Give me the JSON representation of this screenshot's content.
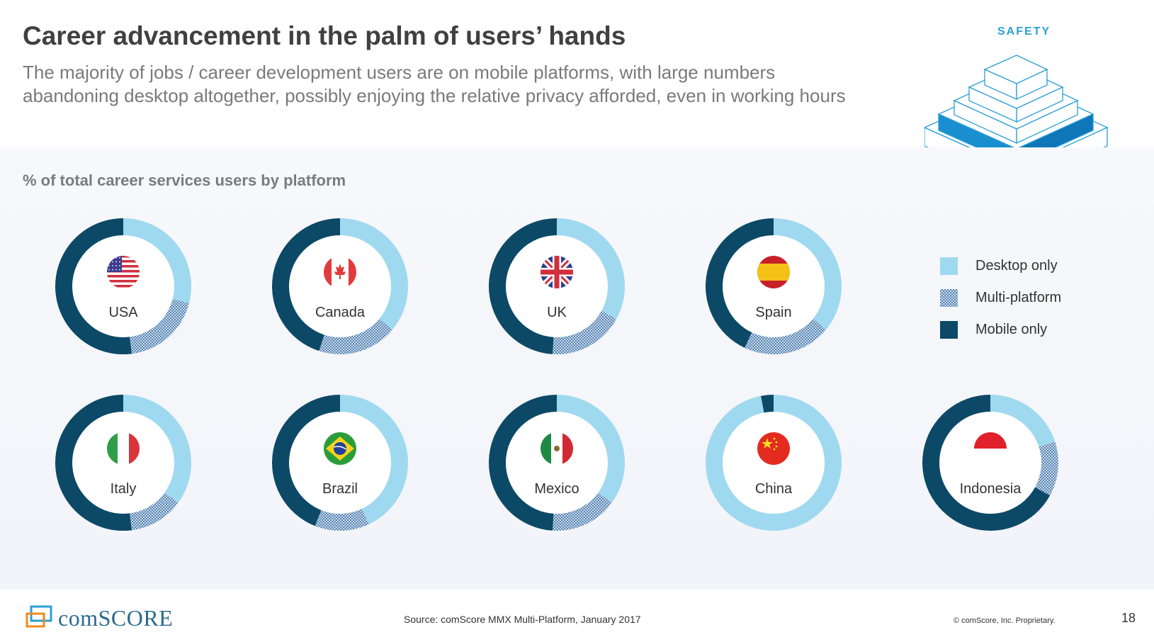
{
  "header": {
    "title": "Career advancement in the palm of users’ hands",
    "subtitle_line1": "The majority of jobs / career development users are on mobile platforms, with large numbers",
    "subtitle_line2": "abandoning desktop altogether, possibly enjoying the relative privacy afforded, even in working hours",
    "badge": "SAFETY"
  },
  "colors": {
    "desktop": "#9fd9f0",
    "multi": "#5b86b3",
    "mobile": "#0c4966"
  },
  "chart_data": {
    "type": "pie",
    "title": "% of total career services users by platform",
    "series_names": [
      "Desktop only",
      "Multi-platform",
      "Mobile only"
    ],
    "countries": [
      {
        "name": "USA",
        "flag": "usa",
        "desktop": 29,
        "multi": 19,
        "mobile": 52
      },
      {
        "name": "Canada",
        "flag": "canada",
        "desktop": 36,
        "multi": 19,
        "mobile": 45
      },
      {
        "name": "UK",
        "flag": "uk",
        "desktop": 33,
        "multi": 18,
        "mobile": 49
      },
      {
        "name": "Spain",
        "flag": "spain",
        "desktop": 36,
        "multi": 21,
        "mobile": 43
      },
      {
        "name": "Italy",
        "flag": "italy",
        "desktop": 35,
        "multi": 13,
        "mobile": 52
      },
      {
        "name": "Brazil",
        "flag": "brazil",
        "desktop": 43,
        "multi": 13,
        "mobile": 44
      },
      {
        "name": "Mexico",
        "flag": "mexico",
        "desktop": 35,
        "multi": 16,
        "mobile": 49
      },
      {
        "name": "China",
        "flag": "china",
        "desktop": 97,
        "multi": 0,
        "mobile": 3
      },
      {
        "name": "Indonesia",
        "flag": "indonesia",
        "desktop": 20,
        "multi": 13,
        "mobile": 67
      }
    ],
    "legend_position": "right"
  },
  "legend": [
    {
      "label": "Desktop only",
      "key": "desktop"
    },
    {
      "label": "Multi-platform",
      "key": "multi"
    },
    {
      "label": "Mobile only",
      "key": "mobile"
    }
  ],
  "footer": {
    "logo": "comSCORE",
    "source": "Source: comScore MMX Multi-Platform, January 2017",
    "copyright": "© comScore, Inc. Proprietary.",
    "page_number": "18"
  }
}
